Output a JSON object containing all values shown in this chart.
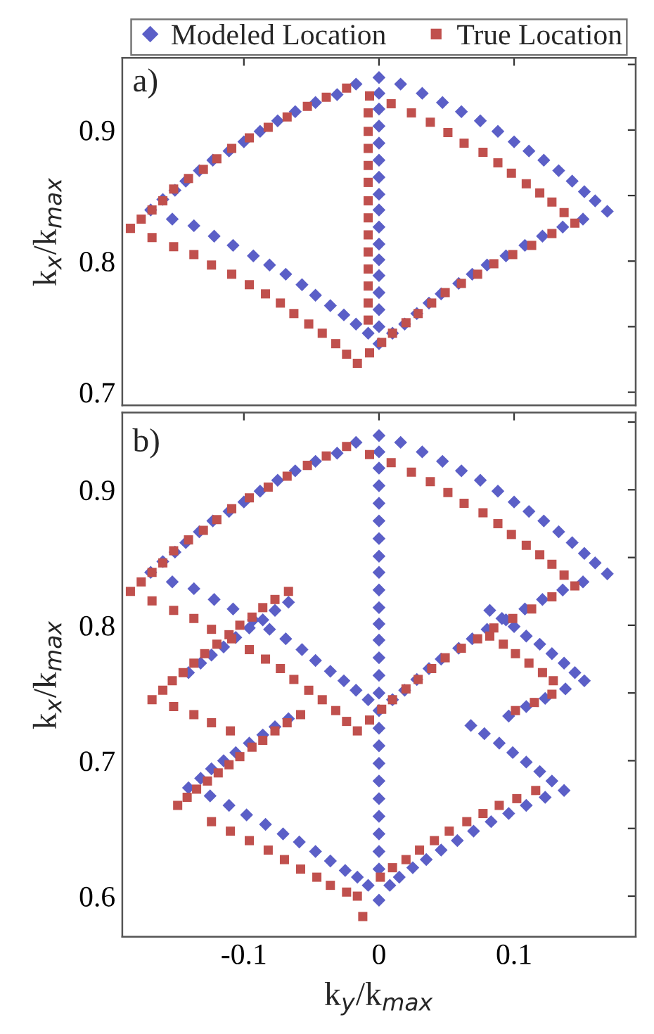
{
  "chart_data": [
    {
      "type": "scatter",
      "annotations": [
        "a)"
      ],
      "ylabel": "k$_{x}$/k$_{max}$",
      "xlim": [
        -0.19,
        0.19
      ],
      "ylim": [
        0.69,
        0.955
      ],
      "xticks": [
        -0.1,
        0,
        0.1
      ],
      "yticks": [
        0.7,
        {
          "value": 0.75,
          "label": null
        },
        0.8,
        {
          "value": 0.85,
          "label": null
        },
        0.9,
        {
          "value": 0.95,
          "label": null
        }
      ],
      "tick_labels": "y",
      "grid": false,
      "legend": "top",
      "series": [
        {
          "name": "Modeled Location",
          "color": "#5b5fc7",
          "marker": "diamond",
          "x": [
            -0.169,
            -0.16,
            -0.151,
            -0.143,
            -0.133,
            -0.123,
            -0.111,
            -0.1,
            -0.088,
            -0.075,
            -0.062,
            -0.047,
            -0.031,
            -0.017,
            0,
            0.016,
            0.032,
            0.047,
            0.061,
            0.075,
            0.088,
            0.1,
            0.111,
            0.122,
            0.133,
            0.143,
            0.152,
            0.16,
            0.169,
            0.01,
            0.019,
            0.028,
            0.037,
            0.046,
            0.059,
            0.069,
            0.08,
            0.094,
            0.108,
            0.121,
            0.136,
            0.151,
            0,
            -0.153,
            -0.137,
            -0.122,
            -0.108,
            -0.093,
            -0.081,
            -0.069,
            -0.057,
            -0.047,
            -0.036,
            -0.026,
            -0.017,
            -0.008,
            0,
            0,
            0,
            0,
            0,
            0,
            0,
            0,
            0,
            0,
            0,
            0,
            0,
            0,
            0
          ],
          "values": [
            0.839,
            0.847,
            0.854,
            0.861,
            0.869,
            0.877,
            0.884,
            0.891,
            0.899,
            0.907,
            0.914,
            0.921,
            0.927,
            0.935,
            0.94,
            0.935,
            0.928,
            0.921,
            0.914,
            0.907,
            0.899,
            0.891,
            0.884,
            0.877,
            0.869,
            0.861,
            0.853,
            0.846,
            0.838,
            0.745,
            0.752,
            0.76,
            0.768,
            0.775,
            0.783,
            0.79,
            0.797,
            0.804,
            0.812,
            0.819,
            0.826,
            0.832,
            0.737,
            0.832,
            0.827,
            0.819,
            0.812,
            0.804,
            0.797,
            0.79,
            0.782,
            0.774,
            0.766,
            0.759,
            0.752,
            0.745,
            0.928,
            0.916,
            0.903,
            0.89,
            0.877,
            0.864,
            0.851,
            0.839,
            0.826,
            0.813,
            0.801,
            0.789,
            0.776,
            0.763,
            0.75
          ]
        },
        {
          "name": "True Location",
          "color": "#c0504d",
          "marker": "square",
          "x": [
            -0.184,
            -0.176,
            -0.168,
            -0.16,
            -0.152,
            -0.141,
            -0.13,
            -0.12,
            -0.109,
            -0.096,
            -0.082,
            -0.068,
            -0.053,
            -0.039,
            -0.024,
            -0.007,
            0.009,
            0.024,
            0.038,
            0.051,
            0.063,
            0.077,
            0.088,
            0.098,
            0.109,
            0.119,
            0.128,
            0.137,
            0.145,
            -0.016,
            -0.007,
            0.002,
            0.01,
            0.02,
            0.029,
            0.039,
            0.049,
            0.061,
            0.073,
            0.085,
            0.099,
            0.113,
            0.128,
            -0.168,
            -0.152,
            -0.137,
            -0.124,
            -0.109,
            -0.096,
            -0.084,
            -0.073,
            -0.063,
            -0.052,
            -0.042,
            -0.032,
            -0.024,
            -0.008,
            -0.008,
            -0.008,
            -0.008,
            -0.008,
            -0.008,
            -0.008,
            -0.008,
            -0.008,
            -0.008,
            -0.008,
            -0.008,
            -0.008
          ],
          "values": [
            0.825,
            0.832,
            0.839,
            0.846,
            0.855,
            0.863,
            0.87,
            0.878,
            0.886,
            0.894,
            0.902,
            0.91,
            0.918,
            0.925,
            0.932,
            0.926,
            0.92,
            0.913,
            0.906,
            0.898,
            0.89,
            0.883,
            0.875,
            0.867,
            0.859,
            0.852,
            0.845,
            0.837,
            0.829,
            0.722,
            0.73,
            0.738,
            0.745,
            0.753,
            0.76,
            0.768,
            0.776,
            0.783,
            0.79,
            0.798,
            0.805,
            0.812,
            0.821,
            0.818,
            0.811,
            0.805,
            0.797,
            0.79,
            0.782,
            0.775,
            0.768,
            0.76,
            0.752,
            0.745,
            0.737,
            0.729,
            0.913,
            0.899,
            0.886,
            0.873,
            0.86,
            0.846,
            0.833,
            0.82,
            0.807,
            0.794,
            0.781,
            0.768,
            0.755
          ]
        }
      ]
    },
    {
      "type": "scatter",
      "annotations": [
        "b)"
      ],
      "xlabel": "k$_{y}$/k$_{max}$",
      "ylabel": "k$_{x}$/k$_{max}$",
      "xlim": [
        -0.19,
        0.19
      ],
      "ylim": [
        0.57,
        0.957
      ],
      "xticks": [
        -0.1,
        0,
        0.1
      ],
      "yticks": [
        0.6,
        {
          "value": 0.65,
          "label": null
        },
        0.7,
        {
          "value": 0.75,
          "label": null
        },
        0.8,
        {
          "value": 0.85,
          "label": null
        },
        0.9,
        {
          "value": 0.95,
          "label": null
        }
      ],
      "grid": false,
      "series": [
        {
          "color": "#5b5fc7",
          "marker": "diamond",
          "x": [
            -0.169,
            -0.16,
            -0.151,
            -0.143,
            -0.133,
            -0.123,
            -0.111,
            -0.1,
            -0.088,
            -0.075,
            -0.062,
            -0.047,
            -0.031,
            -0.017,
            0,
            0.016,
            0.032,
            0.047,
            0.061,
            0.075,
            0.088,
            0.1,
            0.111,
            0.122,
            0.133,
            0.143,
            0.152,
            0.16,
            0.169,
            0.01,
            0.019,
            0.028,
            0.037,
            0.046,
            0.059,
            0.069,
            0.08,
            0.094,
            0.108,
            0.121,
            0.136,
            0.151,
            0,
            -0.153,
            -0.137,
            -0.122,
            -0.108,
            -0.093,
            -0.081,
            -0.069,
            -0.057,
            -0.047,
            -0.036,
            -0.026,
            -0.017,
            -0.008,
            0,
            0,
            0,
            0,
            0,
            0,
            0,
            0,
            0,
            0,
            0,
            0,
            0,
            0,
            0,
            0.152,
            0.145,
            0.137,
            0.128,
            0.119,
            0.109,
            0.1,
            0.091,
            0.082,
            0.138,
            0.123,
            0.109,
            0.096,
            -0.141,
            -0.132,
            -0.124,
            -0.115,
            -0.106,
            -0.096,
            -0.086,
            -0.077,
            -0.067,
            0.137,
            0.123,
            0.109,
            0.096,
            0.083,
            0.07,
            0.058,
            0.046,
            0.035,
            0.025,
            0.015,
            0.008,
            0,
            0.128,
            0.119,
            0.109,
            0.099,
            0.089,
            0.078,
            0.068,
            -0.141,
            -0.125,
            -0.111,
            -0.098,
            -0.084,
            -0.071,
            -0.059,
            -0.047,
            -0.036,
            -0.025,
            -0.016,
            -0.008,
            -0.132,
            -0.124,
            -0.115,
            -0.106,
            -0.096,
            -0.086,
            -0.077,
            -0.067,
            0,
            0,
            0,
            0,
            0,
            0,
            0,
            0,
            0
          ],
          "values": [
            0.839,
            0.847,
            0.854,
            0.861,
            0.869,
            0.877,
            0.884,
            0.891,
            0.899,
            0.907,
            0.914,
            0.921,
            0.927,
            0.935,
            0.94,
            0.935,
            0.928,
            0.921,
            0.914,
            0.907,
            0.899,
            0.891,
            0.884,
            0.877,
            0.869,
            0.861,
            0.853,
            0.846,
            0.838,
            0.745,
            0.752,
            0.76,
            0.768,
            0.775,
            0.783,
            0.79,
            0.797,
            0.804,
            0.812,
            0.819,
            0.826,
            0.832,
            0.737,
            0.832,
            0.827,
            0.819,
            0.812,
            0.804,
            0.797,
            0.79,
            0.782,
            0.774,
            0.766,
            0.759,
            0.752,
            0.745,
            0.928,
            0.916,
            0.903,
            0.89,
            0.877,
            0.864,
            0.851,
            0.839,
            0.826,
            0.813,
            0.801,
            0.789,
            0.776,
            0.763,
            0.75,
            0.759,
            0.765,
            0.772,
            0.779,
            0.786,
            0.792,
            0.799,
            0.805,
            0.811,
            0.753,
            0.746,
            0.74,
            0.733,
            0.765,
            0.772,
            0.778,
            0.784,
            0.791,
            0.798,
            0.804,
            0.811,
            0.817,
            0.678,
            0.673,
            0.667,
            0.661,
            0.655,
            0.648,
            0.641,
            0.634,
            0.627,
            0.621,
            0.614,
            0.608,
            0.597,
            0.685,
            0.692,
            0.699,
            0.706,
            0.713,
            0.72,
            0.726,
            0.68,
            0.674,
            0.667,
            0.66,
            0.653,
            0.646,
            0.64,
            0.633,
            0.626,
            0.619,
            0.614,
            0.608,
            0.687,
            0.694,
            0.7,
            0.706,
            0.713,
            0.719,
            0.725,
            0.731,
            0.724,
            0.711,
            0.698,
            0.685,
            0.672,
            0.659,
            0.646,
            0.633,
            0.62
          ]
        },
        {
          "color": "#c0504d",
          "marker": "square",
          "x": [
            -0.184,
            -0.176,
            -0.168,
            -0.16,
            -0.152,
            -0.141,
            -0.13,
            -0.12,
            -0.109,
            -0.096,
            -0.082,
            -0.068,
            -0.053,
            -0.039,
            -0.024,
            -0.007,
            0.009,
            0.024,
            0.038,
            0.051,
            0.063,
            0.077,
            0.088,
            0.098,
            0.109,
            0.119,
            0.128,
            0.137,
            0.145,
            -0.016,
            -0.007,
            0.002,
            0.01,
            0.02,
            0.029,
            0.039,
            0.049,
            0.061,
            0.073,
            0.085,
            0.099,
            0.113,
            0.128,
            -0.168,
            -0.152,
            -0.137,
            -0.124,
            -0.109,
            -0.096,
            -0.084,
            -0.073,
            -0.063,
            -0.052,
            -0.042,
            -0.032,
            -0.024,
            0.129,
            0.121,
            0.111,
            0.101,
            0.092,
            0.082,
            0.128,
            0.115,
            0.101,
            -0.168,
            -0.16,
            -0.153,
            -0.145,
            -0.137,
            -0.129,
            -0.12,
            -0.111,
            -0.103,
            -0.094,
            -0.086,
            -0.077,
            -0.067,
            -0.152,
            -0.137,
            -0.124,
            -0.11,
            -0.149,
            -0.142,
            -0.135,
            -0.127,
            -0.119,
            -0.111,
            -0.103,
            -0.094,
            -0.086,
            -0.077,
            -0.068,
            -0.058,
            -0.124,
            -0.11,
            -0.096,
            -0.082,
            -0.07,
            -0.058,
            -0.046,
            -0.036,
            -0.024,
            -0.016,
            -0.012,
            0.001,
            0.01,
            0.02,
            0.03,
            0.041,
            0.052,
            0.065,
            0.077,
            0.089,
            0.102,
            0.116
          ],
          "values": [
            0.825,
            0.832,
            0.839,
            0.846,
            0.855,
            0.863,
            0.87,
            0.878,
            0.886,
            0.894,
            0.902,
            0.91,
            0.918,
            0.925,
            0.932,
            0.926,
            0.92,
            0.913,
            0.906,
            0.898,
            0.89,
            0.883,
            0.875,
            0.867,
            0.859,
            0.852,
            0.845,
            0.837,
            0.829,
            0.722,
            0.73,
            0.738,
            0.745,
            0.753,
            0.76,
            0.768,
            0.776,
            0.783,
            0.79,
            0.798,
            0.805,
            0.812,
            0.821,
            0.818,
            0.811,
            0.805,
            0.797,
            0.79,
            0.782,
            0.775,
            0.768,
            0.76,
            0.752,
            0.745,
            0.737,
            0.729,
            0.759,
            0.765,
            0.772,
            0.779,
            0.786,
            0.792,
            0.749,
            0.743,
            0.737,
            0.745,
            0.752,
            0.759,
            0.765,
            0.772,
            0.779,
            0.786,
            0.793,
            0.8,
            0.806,
            0.813,
            0.819,
            0.825,
            0.74,
            0.734,
            0.728,
            0.722,
            0.667,
            0.673,
            0.679,
            0.685,
            0.691,
            0.697,
            0.703,
            0.71,
            0.715,
            0.722,
            0.728,
            0.734,
            0.655,
            0.648,
            0.641,
            0.634,
            0.627,
            0.62,
            0.614,
            0.608,
            0.603,
            0.6,
            0.585,
            0.614,
            0.621,
            0.627,
            0.634,
            0.641,
            0.648,
            0.655,
            0.661,
            0.667,
            0.672,
            0.678
          ]
        }
      ]
    }
  ]
}
